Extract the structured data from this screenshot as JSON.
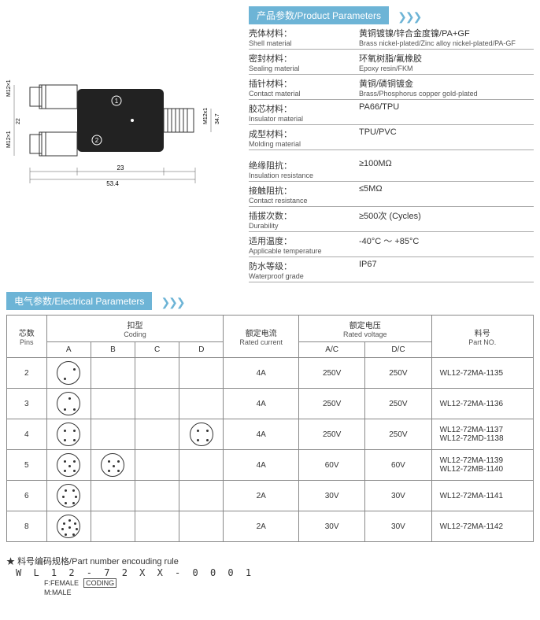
{
  "headers": {
    "product_params": "产品参数/Product Parameters",
    "electrical_params": "电气参数/Electrical Parameters"
  },
  "diagram": {
    "dim_left_top": "M12×1",
    "dim_left_bot": "M12×1",
    "dim_vert": "22",
    "dim_right": "M12x1",
    "dim_right2": "34.7",
    "dim_bot1": "23",
    "dim_bot2": "53.4",
    "mark1": "①",
    "mark2": "②"
  },
  "product_params": [
    {
      "label_cn": "壳体材料：",
      "label_en": "Shell material",
      "value_cn": "黄铜镀镍/锌合金度镍/PA+GF",
      "value_en": "Brass nickel-plated/Zinc alloy nickel-plated/PA-GF"
    },
    {
      "label_cn": "密封材料：",
      "label_en": "Sealing material",
      "value_cn": "环氧树脂/氟橡胶",
      "value_en": "Epoxy resin/FKM"
    },
    {
      "label_cn": "插针材料：",
      "label_en": "Contact material",
      "value_cn": "黄铜/磷铜镀金",
      "value_en": "Brass/Phosphorus copper gold-plated"
    },
    {
      "label_cn": "胶芯材料：",
      "label_en": "Insulator material",
      "value_cn": "PA66/TPU",
      "value_en": ""
    },
    {
      "label_cn": "成型材料：",
      "label_en": "Molding material",
      "value_cn": "TPU/PVC",
      "value_en": ""
    }
  ],
  "product_params2": [
    {
      "label_cn": "绝缘阻抗：",
      "label_en": "Insulation resistance",
      "value_cn": "≥100MΩ"
    },
    {
      "label_cn": "接触阻抗：",
      "label_en": "Contact resistance",
      "value_cn": "≤5MΩ"
    },
    {
      "label_cn": "插拔次数：",
      "label_en": "Durability",
      "value_cn": "≥500次 (Cycles)"
    },
    {
      "label_cn": "适用温度：",
      "label_en": "Applicable temperature",
      "value_cn": "-40°C ～ +85°C"
    },
    {
      "label_cn": "防水等级：",
      "label_en": "Waterproof grade",
      "value_cn": "IP67"
    }
  ],
  "elec_headers": {
    "pins_cn": "芯数",
    "pins_en": "Pins",
    "coding_cn": "扣型",
    "coding_en": "Coding",
    "current_cn": "额定电流",
    "current_en": "Rated current",
    "voltage_cn": "额定电压",
    "voltage_en": "Rated voltage",
    "partno_cn": "料号",
    "partno_en": "Part NO.",
    "A": "A",
    "B": "B",
    "C": "C",
    "D": "D",
    "AC": "A/C",
    "DC": "D/C"
  },
  "elec_rows": [
    {
      "pins": "2",
      "A": true,
      "B": false,
      "C": false,
      "D": false,
      "current": "4A",
      "ac": "250V",
      "dc": "250V",
      "partno": "WL12-72MA-1135"
    },
    {
      "pins": "3",
      "A": true,
      "B": false,
      "C": false,
      "D": false,
      "current": "4A",
      "ac": "250V",
      "dc": "250V",
      "partno": "WL12-72MA-1136"
    },
    {
      "pins": "4",
      "A": true,
      "B": false,
      "C": false,
      "D": true,
      "current": "4A",
      "ac": "250V",
      "dc": "250V",
      "partno": "WL12-72MA-1137\nWL12-72MD-1138"
    },
    {
      "pins": "5",
      "A": true,
      "B": true,
      "C": false,
      "D": false,
      "current": "4A",
      "ac": "60V",
      "dc": "60V",
      "partno": "WL12-72MA-1139\nWL12-72MB-1140"
    },
    {
      "pins": "6",
      "A": true,
      "B": false,
      "C": false,
      "D": false,
      "current": "2A",
      "ac": "30V",
      "dc": "30V",
      "partno": "WL12-72MA-1141"
    },
    {
      "pins": "8",
      "A": true,
      "B": false,
      "C": false,
      "D": false,
      "current": "2A",
      "ac": "30V",
      "dc": "30V",
      "partno": "WL12-72MA-1142"
    }
  ],
  "footer": {
    "star": "★",
    "title": "料号编码规格/Part number encouding rule",
    "code": "W L 1 2 - 7 2 X X - 0 0 0 1",
    "female": "F:FEMALE",
    "male": "M:MALE",
    "coding": "CODING"
  },
  "colors": {
    "header_bg": "#6db4d6",
    "chevron": "#6db4d6"
  }
}
